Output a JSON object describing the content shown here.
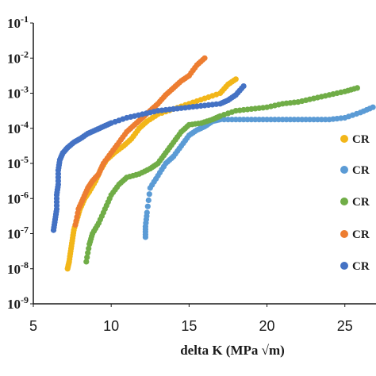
{
  "chart_data": {
    "type": "scatter",
    "xlabel": "delta K (MPa √m)",
    "ylabel": "",
    "xlim": [
      5,
      27
    ],
    "ylim_log10": [
      -9,
      -1
    ],
    "x_ticks": [
      "5",
      "10",
      "15",
      "20",
      "25"
    ],
    "y_ticks": [
      "10-1",
      "10-2",
      "10-3",
      "10-4",
      "10-5",
      "10-6",
      "10-7",
      "10-8",
      "10-9"
    ],
    "legend_placement": "right",
    "grid": false,
    "series": [
      {
        "name": "CR",
        "color": "#F2B619",
        "points": [
          [
            7.2,
            -8.0
          ],
          [
            7.3,
            -7.8
          ],
          [
            7.4,
            -7.5
          ],
          [
            7.5,
            -7.2
          ],
          [
            7.6,
            -6.9
          ],
          [
            7.8,
            -6.6
          ],
          [
            8.0,
            -6.3
          ],
          [
            8.3,
            -6.0
          ],
          [
            8.6,
            -5.8
          ],
          [
            9.0,
            -5.5
          ],
          [
            9.3,
            -5.2
          ],
          [
            9.7,
            -4.9
          ],
          [
            10.2,
            -4.7
          ],
          [
            10.8,
            -4.5
          ],
          [
            11.3,
            -4.3
          ],
          [
            11.8,
            -4.0
          ],
          [
            12.3,
            -3.8
          ],
          [
            13.0,
            -3.6
          ],
          [
            14.0,
            -3.45
          ],
          [
            15.0,
            -3.3
          ],
          [
            16.0,
            -3.15
          ],
          [
            17.0,
            -3.0
          ],
          [
            17.5,
            -2.75
          ],
          [
            18.0,
            -2.6
          ]
        ]
      },
      {
        "name": "CR",
        "color": "#5B9BD5",
        "points": [
          [
            12.2,
            -7.1
          ],
          [
            12.2,
            -6.8
          ],
          [
            12.3,
            -6.4
          ],
          [
            12.5,
            -5.7
          ],
          [
            13.0,
            -5.35
          ],
          [
            13.5,
            -5.0
          ],
          [
            14.0,
            -4.8
          ],
          [
            14.5,
            -4.5
          ],
          [
            15.0,
            -4.2
          ],
          [
            15.5,
            -4.05
          ],
          [
            16.0,
            -3.95
          ],
          [
            16.5,
            -3.8
          ],
          [
            17.0,
            -3.75
          ],
          [
            18.0,
            -3.75
          ],
          [
            19.0,
            -3.75
          ],
          [
            20.0,
            -3.75
          ],
          [
            21.0,
            -3.75
          ],
          [
            22.0,
            -3.75
          ],
          [
            23.0,
            -3.75
          ],
          [
            24.0,
            -3.75
          ],
          [
            25.0,
            -3.7
          ],
          [
            26.0,
            -3.55
          ],
          [
            26.8,
            -3.4
          ]
        ]
      },
      {
        "name": "CR",
        "color": "#70AD47",
        "points": [
          [
            8.4,
            -7.8
          ],
          [
            8.6,
            -7.3
          ],
          [
            8.8,
            -7.0
          ],
          [
            9.2,
            -6.7
          ],
          [
            9.6,
            -6.3
          ],
          [
            10.0,
            -5.9
          ],
          [
            10.5,
            -5.6
          ],
          [
            11.0,
            -5.4
          ],
          [
            11.8,
            -5.3
          ],
          [
            12.5,
            -5.15
          ],
          [
            13.0,
            -5.0
          ],
          [
            13.5,
            -4.7
          ],
          [
            14.0,
            -4.4
          ],
          [
            14.5,
            -4.1
          ],
          [
            15.0,
            -3.9
          ],
          [
            15.8,
            -3.85
          ],
          [
            16.5,
            -3.75
          ],
          [
            17.0,
            -3.65
          ],
          [
            18.0,
            -3.5
          ],
          [
            19.0,
            -3.45
          ],
          [
            20.0,
            -3.4
          ],
          [
            21.0,
            -3.3
          ],
          [
            22.0,
            -3.25
          ],
          [
            23.0,
            -3.15
          ],
          [
            24.0,
            -3.05
          ],
          [
            25.0,
            -2.95
          ],
          [
            25.8,
            -2.85
          ]
        ]
      },
      {
        "name": "CR",
        "color": "#ED7D31",
        "points": [
          [
            7.7,
            -6.75
          ],
          [
            7.9,
            -6.3
          ],
          [
            8.2,
            -6.0
          ],
          [
            8.5,
            -5.7
          ],
          [
            8.8,
            -5.5
          ],
          [
            9.2,
            -5.3
          ],
          [
            9.5,
            -5.0
          ],
          [
            10.0,
            -4.7
          ],
          [
            10.5,
            -4.4
          ],
          [
            11.0,
            -4.1
          ],
          [
            11.5,
            -3.9
          ],
          [
            12.0,
            -3.7
          ],
          [
            12.5,
            -3.5
          ],
          [
            13.0,
            -3.3
          ],
          [
            13.5,
            -3.05
          ],
          [
            14.0,
            -2.85
          ],
          [
            14.5,
            -2.65
          ],
          [
            15.0,
            -2.5
          ],
          [
            15.5,
            -2.2
          ],
          [
            16.0,
            -2.0
          ]
        ]
      },
      {
        "name": "CR",
        "color": "#4472C4",
        "points": [
          [
            6.3,
            -6.9
          ],
          [
            6.4,
            -6.6
          ],
          [
            6.5,
            -6.3
          ],
          [
            6.5,
            -5.9
          ],
          [
            6.6,
            -5.6
          ],
          [
            6.6,
            -5.2
          ],
          [
            6.7,
            -4.9
          ],
          [
            6.9,
            -4.7
          ],
          [
            7.2,
            -4.55
          ],
          [
            7.6,
            -4.4
          ],
          [
            8.0,
            -4.3
          ],
          [
            8.5,
            -4.15
          ],
          [
            9.0,
            -4.05
          ],
          [
            9.5,
            -3.95
          ],
          [
            10.0,
            -3.85
          ],
          [
            11.0,
            -3.7
          ],
          [
            12.0,
            -3.6
          ],
          [
            13.0,
            -3.5
          ],
          [
            14.0,
            -3.45
          ],
          [
            15.0,
            -3.4
          ],
          [
            16.0,
            -3.35
          ],
          [
            17.0,
            -3.3
          ],
          [
            17.5,
            -3.2
          ],
          [
            18.0,
            -3.05
          ],
          [
            18.5,
            -2.8
          ]
        ]
      }
    ]
  }
}
